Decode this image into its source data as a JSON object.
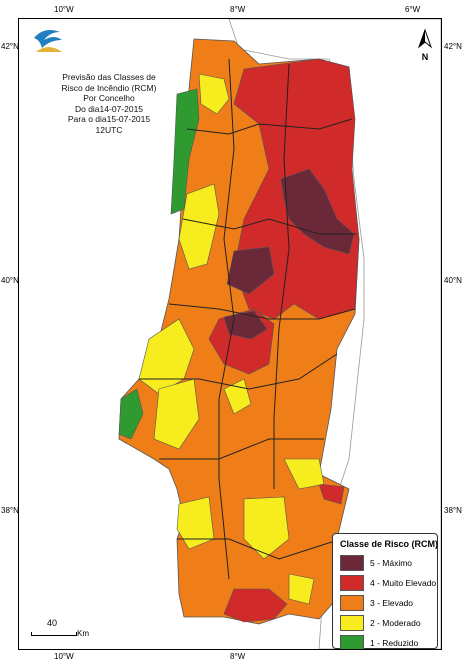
{
  "map_title": {
    "lines": [
      "Previsão das Classes de",
      "Risco de Incêndio (RCM)",
      "Por Concelho",
      "Do dia14-07-2015",
      "Para o dia15-07-2015",
      "12UTC"
    ]
  },
  "axes": {
    "top_ticks": [
      "10°W",
      "8°W",
      "6°W"
    ],
    "bottom_ticks": [
      "10°W",
      "8°W"
    ],
    "left_ticks": [
      "42°N",
      "40°N",
      "38°N"
    ],
    "right_ticks": [
      "42°N",
      "40°N",
      "38°N"
    ]
  },
  "north_arrow": {
    "label": "N",
    "icon": "north-arrow-icon"
  },
  "scale_bar": {
    "value": "40",
    "unit": "Km"
  },
  "legend": {
    "title": "Classe de Risco (RCM)",
    "items": [
      {
        "label": "5 - Máximo",
        "color": "#6b2838"
      },
      {
        "label": "4 - Muito Elevado",
        "color": "#d02a2a"
      },
      {
        "label": "3 - Elevado",
        "color": "#ef7d18"
      },
      {
        "label": "2 - Moderado",
        "color": "#f6ec1e"
      },
      {
        "label": "1 - Reduzido",
        "color": "#2f9a2f"
      }
    ]
  },
  "logo": {
    "icon": "ipma-logo-icon"
  }
}
